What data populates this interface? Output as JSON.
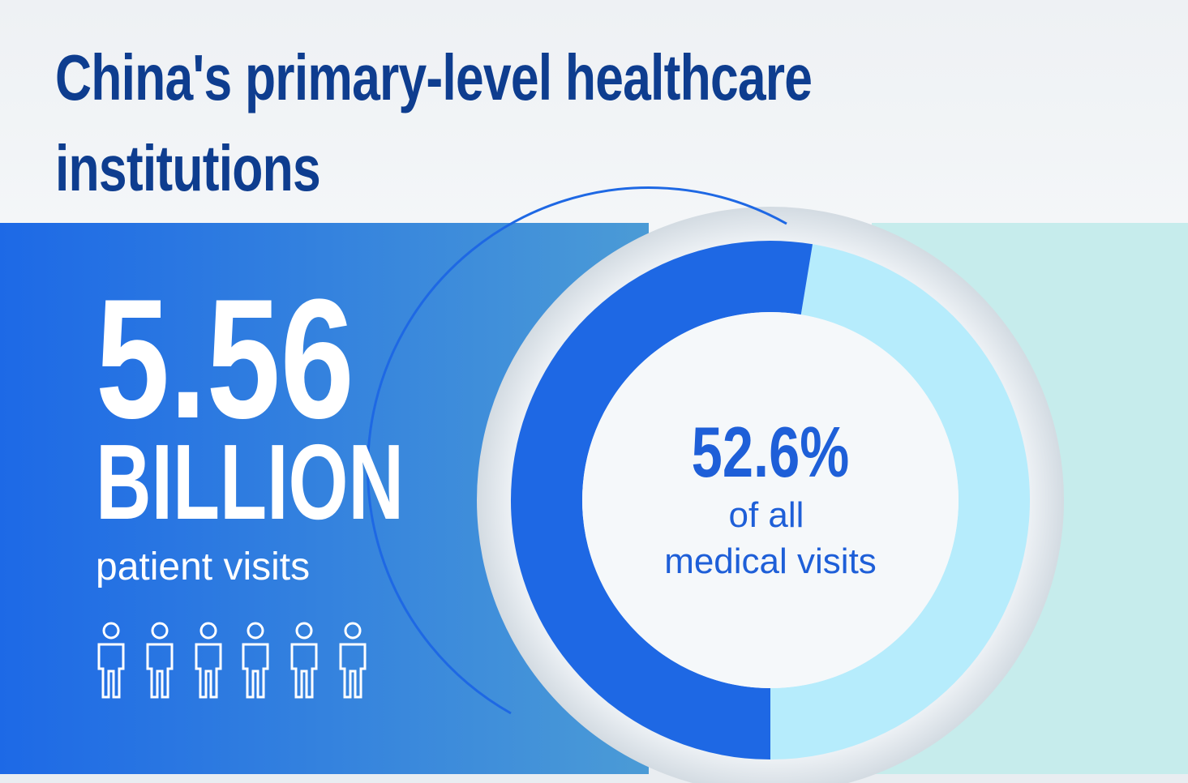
{
  "chart_data": {
    "type": "donut",
    "title": "China's primary-level healthcare institutions",
    "stat": {
      "value": 5.56,
      "unit": "BILLION",
      "label": "patient visits"
    },
    "values": [
      52.6
    ],
    "value_labels": [
      "52.6%"
    ],
    "caption": [
      "of all",
      "medical visits"
    ],
    "colors": [
      "#1e68e4",
      "#b6ecfc"
    ],
    "ylim": [
      0,
      100
    ]
  }
}
